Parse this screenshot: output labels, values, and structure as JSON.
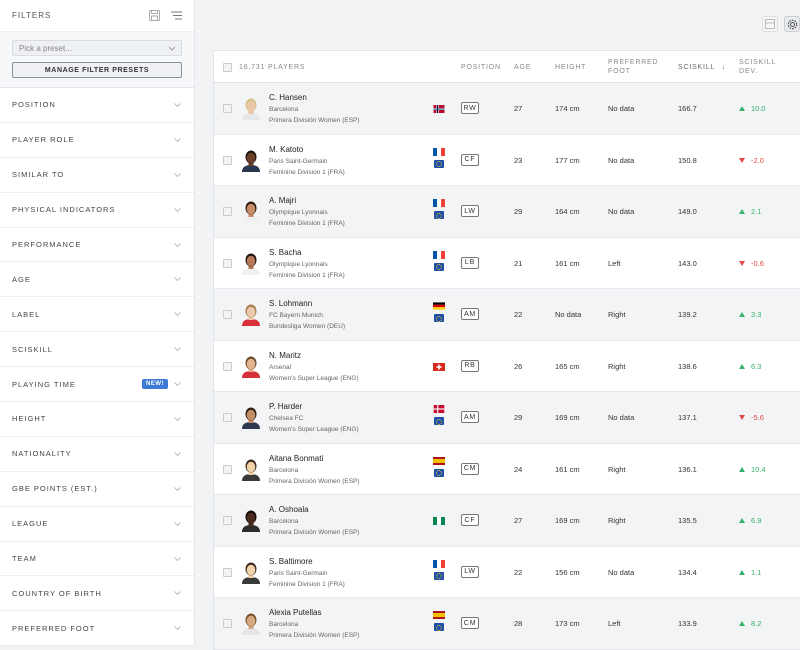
{
  "sidebar": {
    "title": "FILTERS",
    "preset_placeholder": "Pick a preset...",
    "manage_label": "MANAGE FILTER PRESETS",
    "new_badge": "NEW!",
    "filters": [
      {
        "label": "POSITION"
      },
      {
        "label": "PLAYER ROLE"
      },
      {
        "label": "SIMILAR TO"
      },
      {
        "label": "PHYSICAL INDICATORS"
      },
      {
        "label": "PERFORMANCE"
      },
      {
        "label": "AGE"
      },
      {
        "label": "LABEL"
      },
      {
        "label": "SCISKILL"
      },
      {
        "label": "PLAYING TIME",
        "badge": true
      },
      {
        "label": "HEIGHT"
      },
      {
        "label": "NATIONALITY"
      },
      {
        "label": "GBE POINTS (EST.)"
      },
      {
        "label": "LEAGUE"
      },
      {
        "label": "TEAM"
      },
      {
        "label": "COUNTRY OF BIRTH"
      },
      {
        "label": "PREFERRED FOOT"
      }
    ]
  },
  "table": {
    "columns": {
      "players": "16,731 PLAYERS",
      "position": "POSITION",
      "age": "AGE",
      "height": "HEIGHT",
      "foot_1": "PREFERRED",
      "foot_2": "FOOT",
      "sciskill": "SCISKILL",
      "sort_arrow": "↓",
      "dev_1": "SCISKILL",
      "dev_2": "DEV."
    },
    "rows": [
      {
        "name": "C. Hansen",
        "club": "Barcelona",
        "league": "Primera División Women (ESP)",
        "flag": "NOR",
        "pos": "RW",
        "age": "27",
        "height": "174 cm",
        "foot": "No data",
        "sciskill": "166.7",
        "dev": "10.0",
        "dir": "up",
        "skin": "#e9c7a8",
        "hair": "#d7c08a",
        "shirt": "#e8e8e8"
      },
      {
        "name": "M. Katoto",
        "club": "Paris Saint-Germain",
        "league": "Feminine Division 1 (FRA)",
        "flag": "FRA",
        "pos": "CF",
        "age": "23",
        "height": "177 cm",
        "foot": "No data",
        "sciskill": "150.8",
        "dev": "-2.0",
        "dir": "down",
        "skin": "#6b3f27",
        "hair": "#1e140f",
        "shirt": "#2a3550"
      },
      {
        "name": "A. Majri",
        "club": "Olympique Lyonnais",
        "league": "Feminine Division 1 (FRA)",
        "flag": "FRA",
        "pos": "LW",
        "age": "29",
        "height": "164 cm",
        "foot": "No data",
        "sciskill": "149.0",
        "dev": "2.1",
        "dir": "up",
        "skin": "#c98c69",
        "hair": "#2a1a12",
        "shirt": "#f1f1f1"
      },
      {
        "name": "S. Bacha",
        "club": "Olympique Lyonnais",
        "league": "Feminine Division 1 (FRA)",
        "flag": "FRA",
        "pos": "LB",
        "age": "21",
        "height": "161 cm",
        "foot": "Left",
        "sciskill": "143.0",
        "dev": "-0.6",
        "dir": "down",
        "skin": "#b7795a",
        "hair": "#1c120d",
        "shirt": "#f1f1f1"
      },
      {
        "name": "S. Lohmann",
        "club": "FC Bayern Munich",
        "league": "Bundesliga Women (DEU)",
        "flag": "DEU",
        "pos": "AM",
        "age": "22",
        "height": "No data",
        "foot": "Right",
        "sciskill": "139.2",
        "dev": "3.3",
        "dir": "up",
        "skin": "#edc9ae",
        "hair": "#a87a4f",
        "shirt": "#d9303a"
      },
      {
        "name": "N. Maritz",
        "club": "Arsenal",
        "league": "Women's Super League (ENG)",
        "flag": "CHE",
        "pos": "RB",
        "age": "26",
        "height": "165 cm",
        "foot": "Right",
        "sciskill": "138.6",
        "dev": "6.3",
        "dir": "up",
        "skin": "#e3b38d",
        "hair": "#6d4a2c",
        "shirt": "#d6303a"
      },
      {
        "name": "P. Harder",
        "club": "Chelsea FC",
        "league": "Women's Super League (ENG)",
        "flag": "DNK",
        "pos": "AM",
        "age": "29",
        "height": "169 cm",
        "foot": "No data",
        "sciskill": "137.1",
        "dev": "-5.6",
        "dir": "down",
        "skin": "#c48d65",
        "hair": "#2b1e14",
        "shirt": "#2d3a4d"
      },
      {
        "name": "Aitana Bonmati",
        "club": "Barcelona",
        "league": "Primera División Women (ESP)",
        "flag": "ESP",
        "pos": "CM",
        "age": "24",
        "height": "161 cm",
        "foot": "Right",
        "sciskill": "136.1",
        "dev": "10.4",
        "dir": "up",
        "skin": "#f2d2a8",
        "hair": "#3b2a1f",
        "shirt": "#3a3a3a"
      },
      {
        "name": "A. Oshoala",
        "club": "Barcelona",
        "league": "Primera División Women (ESP)",
        "flag": "NGA",
        "pos": "CF",
        "age": "27",
        "height": "169 cm",
        "foot": "Right",
        "sciskill": "135.5",
        "dev": "6.9",
        "dir": "up",
        "skin": "#4a2b1d",
        "hair": "#120b08",
        "shirt": "#2c2c2c"
      },
      {
        "name": "S. Baltimore",
        "club": "Paris Saint-Germain",
        "league": "Feminine Division 1 (FRA)",
        "flag": "FRA",
        "pos": "LW",
        "age": "22",
        "height": "156 cm",
        "foot": "No data",
        "sciskill": "134.4",
        "dev": "1.1",
        "dir": "up",
        "skin": "#f2d2a8",
        "hair": "#3b2a1f",
        "shirt": "#3a3a3a"
      },
      {
        "name": "Alexia Putellas",
        "club": "Barcelona",
        "league": "Primera División Women (ESP)",
        "flag": "ESP",
        "pos": "CM",
        "age": "28",
        "height": "173 cm",
        "foot": "Left",
        "sciskill": "133.9",
        "dev": "8.2",
        "dir": "up",
        "skin": "#d8a882",
        "hair": "#7a5430",
        "shirt": "#e6e6e6"
      }
    ]
  },
  "colors": {
    "up": "#35b36b",
    "down": "#e04848",
    "badge": "#3d7ad6"
  }
}
